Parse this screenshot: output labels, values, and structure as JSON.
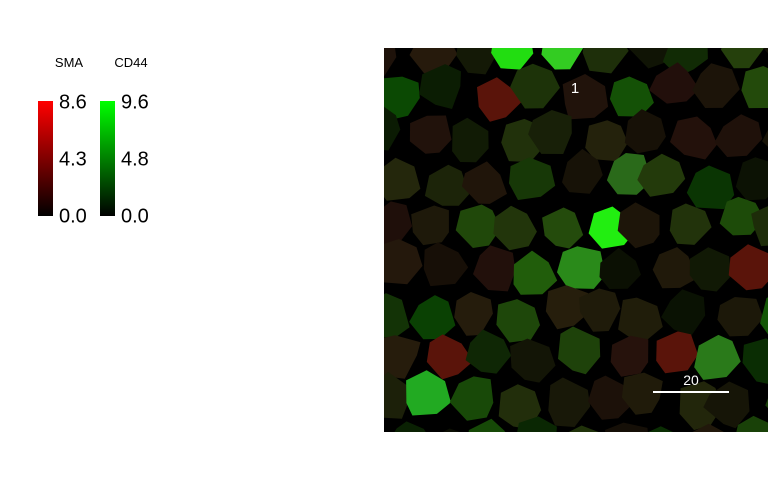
{
  "legends": [
    {
      "title": "SMA",
      "labels": [
        "8.6",
        "4.3",
        "0.0"
      ]
    },
    {
      "title": "CD44",
      "labels": [
        "9.6",
        "4.8",
        "0.0"
      ]
    }
  ],
  "image": {
    "cell_label": "1",
    "scale_bar_label": "20"
  }
}
